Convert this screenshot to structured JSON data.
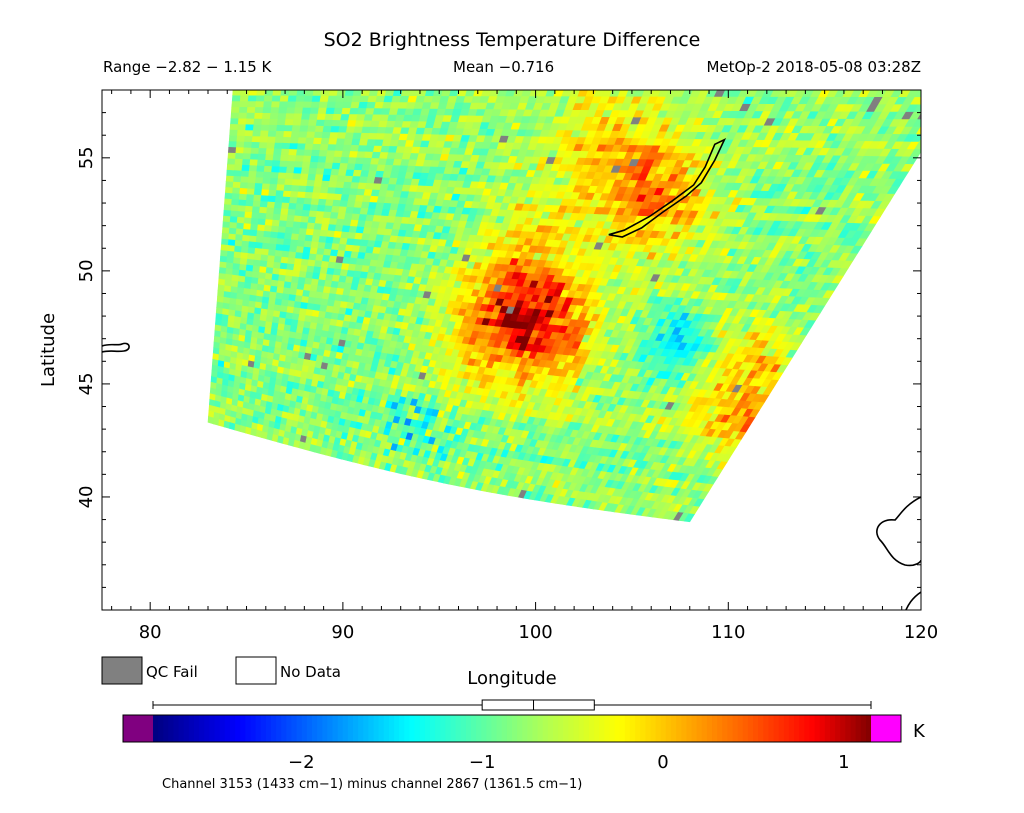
{
  "header": {
    "title": "SO2 Brightness Temperature Difference",
    "range": "Range −2.82 − 1.15 K",
    "mean": "Mean −0.716",
    "instrument": "MetOp-2 2018-05-08 03:28Z"
  },
  "legend": {
    "qc_fail": "QC Fail",
    "no_data": "No Data",
    "qc_fail_color": "#808080",
    "no_data_color": "#ffffff"
  },
  "colorbar": {
    "unit": "K",
    "ticks": [
      "−2",
      "−1",
      "0",
      "1"
    ],
    "tick_values": [
      -2,
      -1,
      0,
      1
    ],
    "range": [
      -2.82,
      1.15
    ],
    "underflow_color": "#800080",
    "overflow_color": "#ff00ff",
    "caption": "Channel 3153 (1433 cm−1) minus channel 2867 (1361.5 cm−1)",
    "boxplot": {
      "whisker_low": -2.82,
      "q1": -1.0,
      "median": -0.716,
      "q3": -0.38,
      "whisker_high": 1.15
    }
  },
  "chart_data": {
    "type": "heatmap",
    "title": "SO2 Brightness Temperature Difference",
    "xlabel": "Longitude",
    "ylabel": "Latitude",
    "xlim": [
      77.5,
      120
    ],
    "ylim": [
      35,
      58
    ],
    "x_ticks": [
      "80",
      "90",
      "100",
      "110",
      "120"
    ],
    "x_tick_values": [
      80,
      90,
      100,
      110,
      120
    ],
    "y_ticks": [
      "40",
      "45",
      "50",
      "55"
    ],
    "y_tick_values": [
      40,
      45,
      50,
      55
    ],
    "value_unit": "K",
    "value_range": [
      -2.82,
      1.15
    ],
    "value_mean": -0.716,
    "swath_corners_lonlat": [
      [
        84.3,
        58
      ],
      [
        122,
        58
      ],
      [
        108,
        38.9
      ],
      [
        83,
        43.3
      ]
    ],
    "hotspots": [
      {
        "lon": 99.8,
        "lat": 47.8,
        "value": 0.9
      },
      {
        "lon": 106,
        "lat": 53.5,
        "value": 0.4
      },
      {
        "lon": 110.8,
        "lat": 44.5,
        "value": 0.3
      }
    ],
    "coastline_baikal": [
      [
        103.8,
        51.6
      ],
      [
        104.5,
        51.5
      ],
      [
        105.5,
        51.9
      ],
      [
        106.6,
        52.6
      ],
      [
        107.8,
        53.3
      ],
      [
        108.6,
        53.9
      ],
      [
        109.3,
        54.9
      ],
      [
        109.8,
        55.8
      ],
      [
        109.3,
        55.6
      ],
      [
        108.8,
        54.6
      ],
      [
        108.2,
        53.8
      ],
      [
        107.1,
        53.1
      ],
      [
        105.9,
        52.4
      ],
      [
        104.6,
        51.8
      ],
      [
        103.8,
        51.6
      ]
    ]
  }
}
